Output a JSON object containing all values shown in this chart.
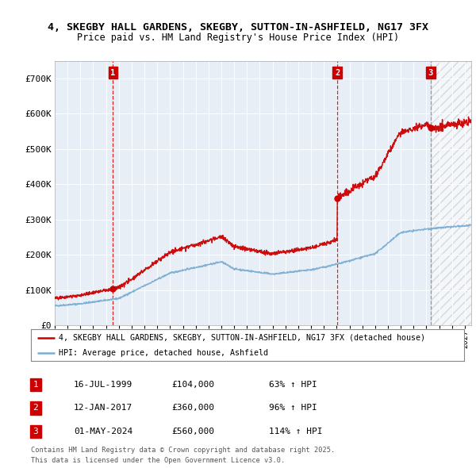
{
  "title_line1": "4, SKEGBY HALL GARDENS, SKEGBY, SUTTON-IN-ASHFIELD, NG17 3FX",
  "title_line2": "Price paid vs. HM Land Registry's House Price Index (HPI)",
  "xlim_start": 1995.0,
  "xlim_end": 2027.5,
  "ylim_min": 0,
  "ylim_max": 750000,
  "yticks": [
    0,
    100000,
    200000,
    300000,
    400000,
    500000,
    600000,
    700000
  ],
  "ytick_labels": [
    "£0",
    "£100K",
    "£200K",
    "£300K",
    "£400K",
    "£500K",
    "£600K",
    "£700K"
  ],
  "sale_color": "#cc0000",
  "hpi_color": "#7aafd4",
  "vline_color_red": "#cc0000",
  "vline_color_gray": "#888888",
  "chart_bg": "#e8eef5",
  "sale_points": [
    {
      "date_num": 1999.54,
      "price": 104000,
      "label": "1"
    },
    {
      "date_num": 2017.04,
      "price": 360000,
      "label": "2"
    },
    {
      "date_num": 2024.33,
      "price": 560000,
      "label": "3"
    }
  ],
  "transactions": [
    {
      "label": "1",
      "date": "16-JUL-1999",
      "price": "£104,000",
      "hpi_change": "63% ↑ HPI"
    },
    {
      "label": "2",
      "date": "12-JAN-2017",
      "price": "£360,000",
      "hpi_change": "96% ↑ HPI"
    },
    {
      "label": "3",
      "date": "01-MAY-2024",
      "price": "£560,000",
      "hpi_change": "114% ↑ HPI"
    }
  ],
  "legend_line1": "4, SKEGBY HALL GARDENS, SKEGBY, SUTTON-IN-ASHFIELD, NG17 3FX (detached house)",
  "legend_line2": "HPI: Average price, detached house, Ashfield",
  "footer_line1": "Contains HM Land Registry data © Crown copyright and database right 2025.",
  "footer_line2": "This data is licensed under the Open Government Licence v3.0.",
  "bg_color": "#ffffff",
  "grid_color": "#ffffff",
  "label_box_color": "#cc0000"
}
